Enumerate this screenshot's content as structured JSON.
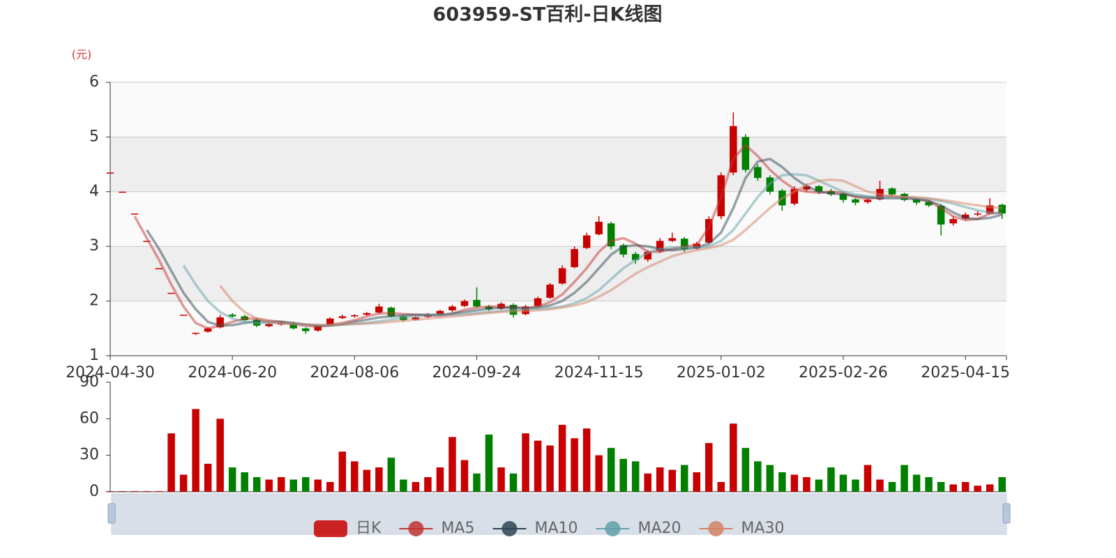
{
  "chart_data": {
    "type": "candlestick",
    "title": "603959-ST百利-日K线图",
    "y_unit": "(元)",
    "categories": [
      "2024-04-30",
      null,
      null,
      null,
      null,
      null,
      null,
      null,
      null,
      null,
      "2024-06-20",
      null,
      null,
      null,
      null,
      null,
      null,
      null,
      null,
      null,
      "2024-08-06",
      null,
      null,
      null,
      null,
      null,
      null,
      null,
      null,
      null,
      "2024-09-24",
      null,
      null,
      null,
      null,
      null,
      null,
      null,
      null,
      null,
      "2024-11-15",
      null,
      null,
      null,
      null,
      null,
      null,
      null,
      null,
      null,
      "2025-01-02",
      null,
      null,
      null,
      null,
      null,
      null,
      null,
      null,
      null,
      "2025-02-26",
      null,
      null,
      null,
      null,
      null,
      null,
      null,
      null,
      null,
      "2025-04-15",
      null,
      null,
      null
    ],
    "ylim": [
      1,
      6
    ],
    "yticks": [
      1,
      2,
      3,
      4,
      5,
      6
    ],
    "grid": true,
    "series": [
      {
        "name": "日K",
        "type": "candlestick",
        "up_color": "#c80000",
        "down_color": "#008000",
        "open": [
          4.35,
          4.0,
          3.6,
          3.1,
          2.6,
          2.15,
          1.75,
          1.42,
          1.44,
          1.52,
          1.75,
          1.72,
          1.66,
          1.54,
          1.57,
          1.6,
          1.5,
          1.46,
          1.56,
          1.69,
          1.72,
          1.75,
          1.79,
          1.88,
          1.72,
          1.66,
          1.71,
          1.76,
          1.83,
          1.91,
          2.02,
          1.9,
          1.86,
          1.93,
          1.76,
          1.91,
          2.06,
          2.32,
          2.62,
          2.97,
          3.22,
          3.42,
          3.02,
          2.86,
          2.76,
          2.91,
          3.1,
          3.14,
          2.96,
          3.07,
          3.55,
          4.35,
          5.0,
          4.45,
          4.26,
          4.02,
          3.78,
          4.04,
          4.1,
          4.01,
          3.96,
          3.86,
          3.81,
          3.86,
          4.06,
          3.96,
          3.86,
          3.81,
          3.74,
          3.42,
          3.51,
          3.58,
          3.6,
          3.76
        ],
        "close": [
          4.35,
          4.0,
          3.6,
          3.1,
          2.6,
          2.15,
          1.75,
          1.42,
          1.5,
          1.7,
          1.72,
          1.65,
          1.55,
          1.58,
          1.6,
          1.5,
          1.45,
          1.55,
          1.68,
          1.72,
          1.74,
          1.78,
          1.9,
          1.72,
          1.65,
          1.7,
          1.75,
          1.82,
          1.9,
          2.0,
          1.9,
          1.85,
          1.95,
          1.75,
          1.9,
          2.05,
          2.3,
          2.6,
          2.95,
          3.2,
          3.45,
          3.0,
          2.85,
          2.75,
          2.9,
          3.1,
          3.15,
          2.95,
          3.05,
          3.5,
          4.3,
          5.2,
          4.4,
          4.25,
          4.0,
          3.75,
          4.05,
          4.1,
          4.0,
          3.95,
          3.85,
          3.8,
          3.85,
          4.05,
          3.95,
          3.85,
          3.8,
          3.75,
          3.4,
          3.5,
          3.58,
          3.6,
          3.75,
          3.6
        ],
        "high": [
          4.35,
          4.0,
          3.6,
          3.1,
          2.6,
          2.15,
          1.75,
          1.42,
          1.52,
          1.75,
          1.78,
          1.75,
          1.68,
          1.6,
          1.63,
          1.62,
          1.52,
          1.57,
          1.7,
          1.75,
          1.76,
          1.8,
          1.95,
          1.9,
          1.74,
          1.72,
          1.78,
          1.84,
          1.93,
          2.03,
          2.25,
          1.93,
          1.98,
          1.96,
          1.93,
          2.08,
          2.33,
          2.65,
          3.0,
          3.25,
          3.55,
          3.45,
          3.05,
          2.9,
          2.93,
          3.15,
          3.25,
          3.17,
          3.08,
          3.55,
          4.35,
          5.45,
          5.05,
          4.5,
          4.3,
          4.05,
          4.1,
          4.15,
          4.12,
          4.05,
          3.98,
          3.88,
          3.88,
          4.2,
          4.08,
          3.98,
          3.88,
          3.83,
          3.77,
          3.55,
          3.62,
          3.65,
          3.88,
          3.78
        ],
        "low": [
          4.35,
          4.0,
          3.6,
          3.1,
          2.6,
          2.15,
          1.75,
          1.38,
          1.42,
          1.5,
          1.7,
          1.63,
          1.52,
          1.52,
          1.55,
          1.48,
          1.4,
          1.44,
          1.54,
          1.67,
          1.7,
          1.73,
          1.77,
          1.7,
          1.62,
          1.64,
          1.69,
          1.74,
          1.8,
          1.89,
          1.88,
          1.82,
          1.84,
          1.7,
          1.74,
          1.89,
          2.04,
          2.3,
          2.6,
          2.95,
          3.2,
          2.95,
          2.8,
          2.68,
          2.72,
          2.88,
          3.08,
          2.9,
          2.94,
          3.05,
          3.5,
          4.3,
          4.35,
          4.2,
          3.95,
          3.65,
          3.75,
          4.0,
          3.96,
          3.92,
          3.8,
          3.75,
          3.78,
          3.84,
          3.92,
          3.82,
          3.76,
          3.72,
          3.2,
          3.38,
          3.48,
          3.55,
          3.58,
          3.5
        ]
      },
      {
        "name": "MA5",
        "color": "#c23531",
        "values": [
          null,
          null,
          3.55,
          3.15,
          2.75,
          2.3,
          1.9,
          1.6,
          1.5,
          1.55,
          1.62,
          1.68,
          1.68,
          1.64,
          1.62,
          1.58,
          1.55,
          1.53,
          1.56,
          1.6,
          1.65,
          1.72,
          1.77,
          1.78,
          1.76,
          1.75,
          1.74,
          1.73,
          1.77,
          1.84,
          1.88,
          1.9,
          1.9,
          1.88,
          1.87,
          1.9,
          1.98,
          2.12,
          2.35,
          2.6,
          2.9,
          3.1,
          3.15,
          3.05,
          2.9,
          2.9,
          2.95,
          3.0,
          3.02,
          3.35,
          3.9,
          4.6,
          4.85,
          4.65,
          4.4,
          4.2,
          4.05,
          4.0,
          3.98,
          4.0,
          3.98,
          3.9,
          3.87,
          3.9,
          3.92,
          3.9,
          3.87,
          3.83,
          3.7,
          3.55,
          3.48,
          3.5,
          3.6,
          3.62
        ]
      },
      {
        "name": "MA10",
        "color": "#2f4554",
        "values": [
          null,
          null,
          null,
          3.3,
          2.95,
          2.55,
          2.15,
          1.85,
          1.62,
          1.55,
          1.56,
          1.6,
          1.63,
          1.62,
          1.62,
          1.6,
          1.57,
          1.55,
          1.55,
          1.57,
          1.62,
          1.66,
          1.7,
          1.72,
          1.74,
          1.75,
          1.75,
          1.75,
          1.77,
          1.8,
          1.83,
          1.86,
          1.88,
          1.88,
          1.87,
          1.88,
          1.92,
          2.0,
          2.15,
          2.35,
          2.6,
          2.85,
          3.0,
          3.02,
          3.0,
          2.95,
          2.93,
          2.95,
          2.98,
          3.05,
          3.25,
          3.7,
          4.25,
          4.55,
          4.6,
          4.45,
          4.25,
          4.1,
          4.0,
          3.97,
          3.95,
          3.92,
          3.9,
          3.88,
          3.88,
          3.88,
          3.86,
          3.83,
          3.75,
          3.62,
          3.52,
          3.5,
          3.52,
          3.58
        ]
      },
      {
        "name": "MA20",
        "color": "#61a0a8",
        "values": [
          null,
          null,
          null,
          null,
          null,
          null,
          2.65,
          2.3,
          2.0,
          1.8,
          1.68,
          1.62,
          1.6,
          1.6,
          1.6,
          1.58,
          1.57,
          1.56,
          1.56,
          1.57,
          1.58,
          1.6,
          1.63,
          1.66,
          1.7,
          1.72,
          1.74,
          1.75,
          1.75,
          1.76,
          1.78,
          1.8,
          1.82,
          1.84,
          1.85,
          1.86,
          1.87,
          1.9,
          1.96,
          2.05,
          2.2,
          2.4,
          2.6,
          2.75,
          2.88,
          2.95,
          2.98,
          2.98,
          2.98,
          3.0,
          3.1,
          3.3,
          3.6,
          3.9,
          4.15,
          4.3,
          4.32,
          4.3,
          4.2,
          4.1,
          4.0,
          3.95,
          3.92,
          3.9,
          3.9,
          3.9,
          3.88,
          3.87,
          3.83,
          3.78,
          3.72,
          3.66,
          3.62,
          3.6
        ]
      },
      {
        "name": "MA30",
        "color": "#d48265",
        "values": [
          null,
          null,
          null,
          null,
          null,
          null,
          null,
          null,
          null,
          2.28,
          2.0,
          1.8,
          1.68,
          1.62,
          1.59,
          1.58,
          1.57,
          1.56,
          1.56,
          1.57,
          1.58,
          1.59,
          1.6,
          1.62,
          1.64,
          1.66,
          1.68,
          1.7,
          1.72,
          1.74,
          1.76,
          1.78,
          1.8,
          1.81,
          1.82,
          1.83,
          1.85,
          1.88,
          1.92,
          1.98,
          2.08,
          2.2,
          2.35,
          2.5,
          2.62,
          2.72,
          2.82,
          2.88,
          2.93,
          2.97,
          3.02,
          3.12,
          3.3,
          3.5,
          3.7,
          3.88,
          4.0,
          4.12,
          4.2,
          4.22,
          4.2,
          4.1,
          4.0,
          3.95,
          3.92,
          3.9,
          3.9,
          3.88,
          3.85,
          3.82,
          3.78,
          3.75,
          3.72,
          3.7
        ]
      }
    ],
    "volume": {
      "ylim": [
        0,
        90
      ],
      "yticks": [
        0,
        30,
        60,
        90
      ],
      "values": [
        0.5,
        0.5,
        0.5,
        0.5,
        0.5,
        48,
        14,
        68,
        23,
        60,
        20,
        16,
        12,
        10,
        12,
        10,
        12,
        10,
        8,
        33,
        25,
        18,
        20,
        28,
        10,
        8,
        12,
        20,
        45,
        26,
        15,
        47,
        20,
        15,
        48,
        42,
        38,
        55,
        44,
        52,
        30,
        36,
        27,
        25,
        15,
        20,
        18,
        22,
        16,
        40,
        8,
        56,
        36,
        25,
        22,
        16,
        14,
        12,
        10,
        20,
        14,
        10,
        22,
        10,
        8,
        22,
        14,
        12,
        8,
        6,
        8,
        5,
        6,
        12
      ]
    }
  }
}
